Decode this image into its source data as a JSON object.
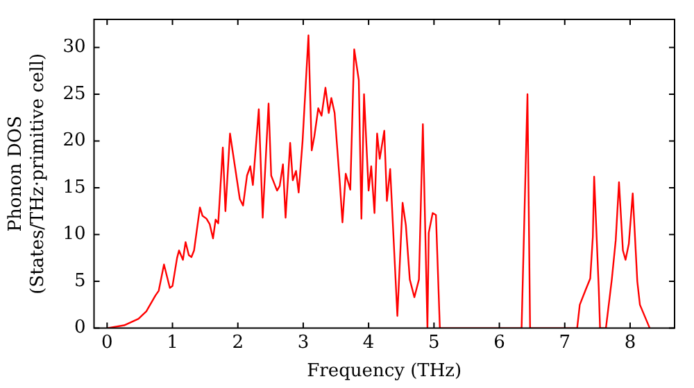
{
  "chart_data": {
    "type": "line",
    "xlabel": "Frequency (THz)",
    "ylabel": "Phonon DOS\n(States/THz·primitive cell)",
    "xlim": [
      -0.2,
      8.68
    ],
    "ylim": [
      0,
      33
    ],
    "xticks": [
      0,
      1,
      2,
      3,
      4,
      5,
      6,
      7,
      8
    ],
    "yticks": [
      0,
      5,
      10,
      15,
      20,
      25,
      30
    ],
    "grid": false,
    "legend": false,
    "marker": "none",
    "line_style": "solid",
    "series": [
      {
        "color": "#ff0000",
        "x": [
          0,
          0.26,
          0.48,
          0.6,
          0.74,
          0.79,
          0.87,
          0.96,
          1.0,
          1.07,
          1.1,
          1.16,
          1.2,
          1.25,
          1.29,
          1.33,
          1.42,
          1.46,
          1.52,
          1.57,
          1.62,
          1.66,
          1.7,
          1.77,
          1.81,
          1.88,
          1.94,
          2.03,
          2.08,
          2.14,
          2.19,
          2.23,
          2.32,
          2.38,
          2.47,
          2.51,
          2.6,
          2.64,
          2.69,
          2.73,
          2.8,
          2.84,
          2.89,
          2.93,
          2.99,
          3.08,
          3.13,
          3.17,
          3.23,
          3.28,
          3.34,
          3.39,
          3.43,
          3.48,
          3.56,
          3.6,
          3.65,
          3.72,
          3.78,
          3.85,
          3.89,
          3.93,
          4.0,
          4.04,
          4.09,
          4.13,
          4.17,
          4.24,
          4.28,
          4.33,
          4.44,
          4.52,
          4.57,
          4.63,
          4.7,
          4.77,
          4.83,
          4.9,
          4.92,
          4.98,
          5.03,
          5.09,
          6.34,
          6.43,
          6.47,
          7.19,
          7.23,
          7.32,
          7.39,
          7.43,
          7.45,
          7.52,
          7.54,
          7.63,
          7.72,
          7.78,
          7.83,
          7.89,
          7.93,
          7.98,
          8.04,
          8.11,
          8.15,
          8.24,
          8.3
        ],
        "values": [
          0,
          0.3,
          1,
          1.8,
          3.5,
          4,
          6.8,
          4.3,
          4.5,
          7.5,
          8.3,
          7.3,
          9.2,
          7.8,
          7.6,
          8.3,
          12.9,
          12,
          11.7,
          11.1,
          9.6,
          11.6,
          11.2,
          19.3,
          12.5,
          20.8,
          18,
          13.8,
          13.1,
          16.3,
          17.3,
          15.3,
          23.4,
          11.8,
          24,
          16.3,
          14.7,
          15.2,
          17.5,
          11.8,
          19.8,
          15.8,
          16.8,
          14.5,
          20,
          31.3,
          19,
          20.5,
          23.5,
          22.7,
          25.7,
          23,
          24.6,
          23,
          15.5,
          11.3,
          16.5,
          14.8,
          29.8,
          26.5,
          11.7,
          25,
          14.7,
          17.3,
          12.3,
          20.8,
          18.1,
          21.1,
          13.6,
          17,
          1.3,
          13.4,
          11,
          5.2,
          3.3,
          5.2,
          21.8,
          0,
          10.2,
          12.3,
          12.1,
          0,
          0,
          25,
          0,
          0,
          2.5,
          4.1,
          5.3,
          9.8,
          16.2,
          4.3,
          0,
          0,
          5.2,
          9.4,
          15.6,
          8.3,
          7.3,
          9,
          14.4,
          5,
          2.5,
          1,
          0
        ]
      }
    ]
  }
}
